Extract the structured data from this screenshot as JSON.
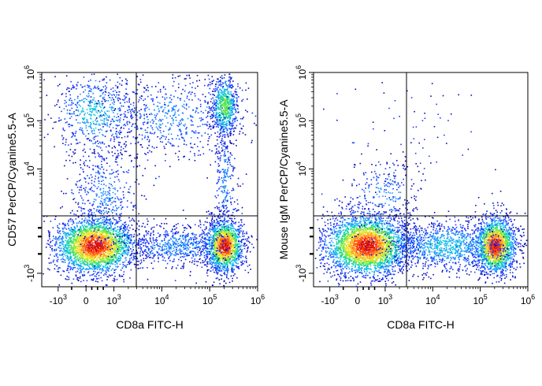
{
  "chart_data": [
    {
      "type": "scatter",
      "subtype": "flow-cytometry-density-plot",
      "xlabel": "CD8a FITC-H",
      "ylabel": "CD57 PerCP/Cyanine5.5-A",
      "x_scale": "biexponential",
      "y_scale": "biexponential",
      "x_ticks": [
        {
          "value": -1000,
          "base": "-10",
          "exp": "3"
        },
        {
          "value": 0,
          "base": "0",
          "exp": ""
        },
        {
          "value": 1000,
          "base": "10",
          "exp": "3"
        },
        {
          "value": 10000,
          "base": "10",
          "exp": "4"
        },
        {
          "value": 100000,
          "base": "10",
          "exp": "5"
        },
        {
          "value": 1000000,
          "base": "10",
          "exp": "6"
        }
      ],
      "y_ticks": [
        {
          "value": -1000,
          "base": "-10",
          "exp": "3"
        },
        {
          "value": 10000,
          "base": "10",
          "exp": "4"
        },
        {
          "value": 100000,
          "base": "10",
          "exp": "5"
        },
        {
          "value": 1000000,
          "base": "10",
          "exp": "6"
        }
      ],
      "quadrant_gate": {
        "x": 2600,
        "y": 6500
      },
      "populations": [
        {
          "name": "CD8- CD57-",
          "x_center": 300,
          "y_center": 0,
          "relative_density": "very high"
        },
        {
          "name": "CD8+ CD57-",
          "x_center": 200000,
          "y_center": 0,
          "relative_density": "high"
        },
        {
          "name": "CD8+ CD57+",
          "x_center": 200000,
          "y_center": 200000,
          "relative_density": "medium"
        },
        {
          "name": "CD8- CD57+",
          "x_center": 300,
          "y_center": 150000,
          "relative_density": "low"
        }
      ]
    },
    {
      "type": "scatter",
      "subtype": "flow-cytometry-density-plot",
      "xlabel": "CD8a FITC-H",
      "ylabel": "Mouse IgM PerCP/Cyanine5.5-A",
      "x_scale": "biexponential",
      "y_scale": "biexponential",
      "x_ticks": [
        {
          "value": -1000,
          "base": "-10",
          "exp": "3"
        },
        {
          "value": 0,
          "base": "0",
          "exp": ""
        },
        {
          "value": 1000,
          "base": "10",
          "exp": "3"
        },
        {
          "value": 10000,
          "base": "10",
          "exp": "4"
        },
        {
          "value": 100000,
          "base": "10",
          "exp": "5"
        },
        {
          "value": 1000000,
          "base": "10",
          "exp": "6"
        }
      ],
      "y_ticks": [
        {
          "value": -1000,
          "base": "-10",
          "exp": "3"
        },
        {
          "value": 10000,
          "base": "10",
          "exp": "4"
        },
        {
          "value": 100000,
          "base": "10",
          "exp": "5"
        },
        {
          "value": 1000000,
          "base": "10",
          "exp": "6"
        }
      ],
      "quadrant_gate": {
        "x": 2600,
        "y": 6500
      },
      "populations": [
        {
          "name": "CD8- IgM-",
          "x_center": 300,
          "y_center": 0,
          "relative_density": "very high"
        },
        {
          "name": "CD8+ IgM-",
          "x_center": 200000,
          "y_center": 0,
          "relative_density": "high"
        },
        {
          "name": "CD8- IgM+ (background)",
          "x_center": 600,
          "y_center": 50000,
          "relative_density": "very low"
        }
      ]
    }
  ],
  "density_colors": [
    "#0a0ab4",
    "#1a3cff",
    "#1f8fff",
    "#14c8e6",
    "#22d889",
    "#7ee83a",
    "#ece728",
    "#ffa51e",
    "#ff4a14",
    "#d40a0a"
  ]
}
